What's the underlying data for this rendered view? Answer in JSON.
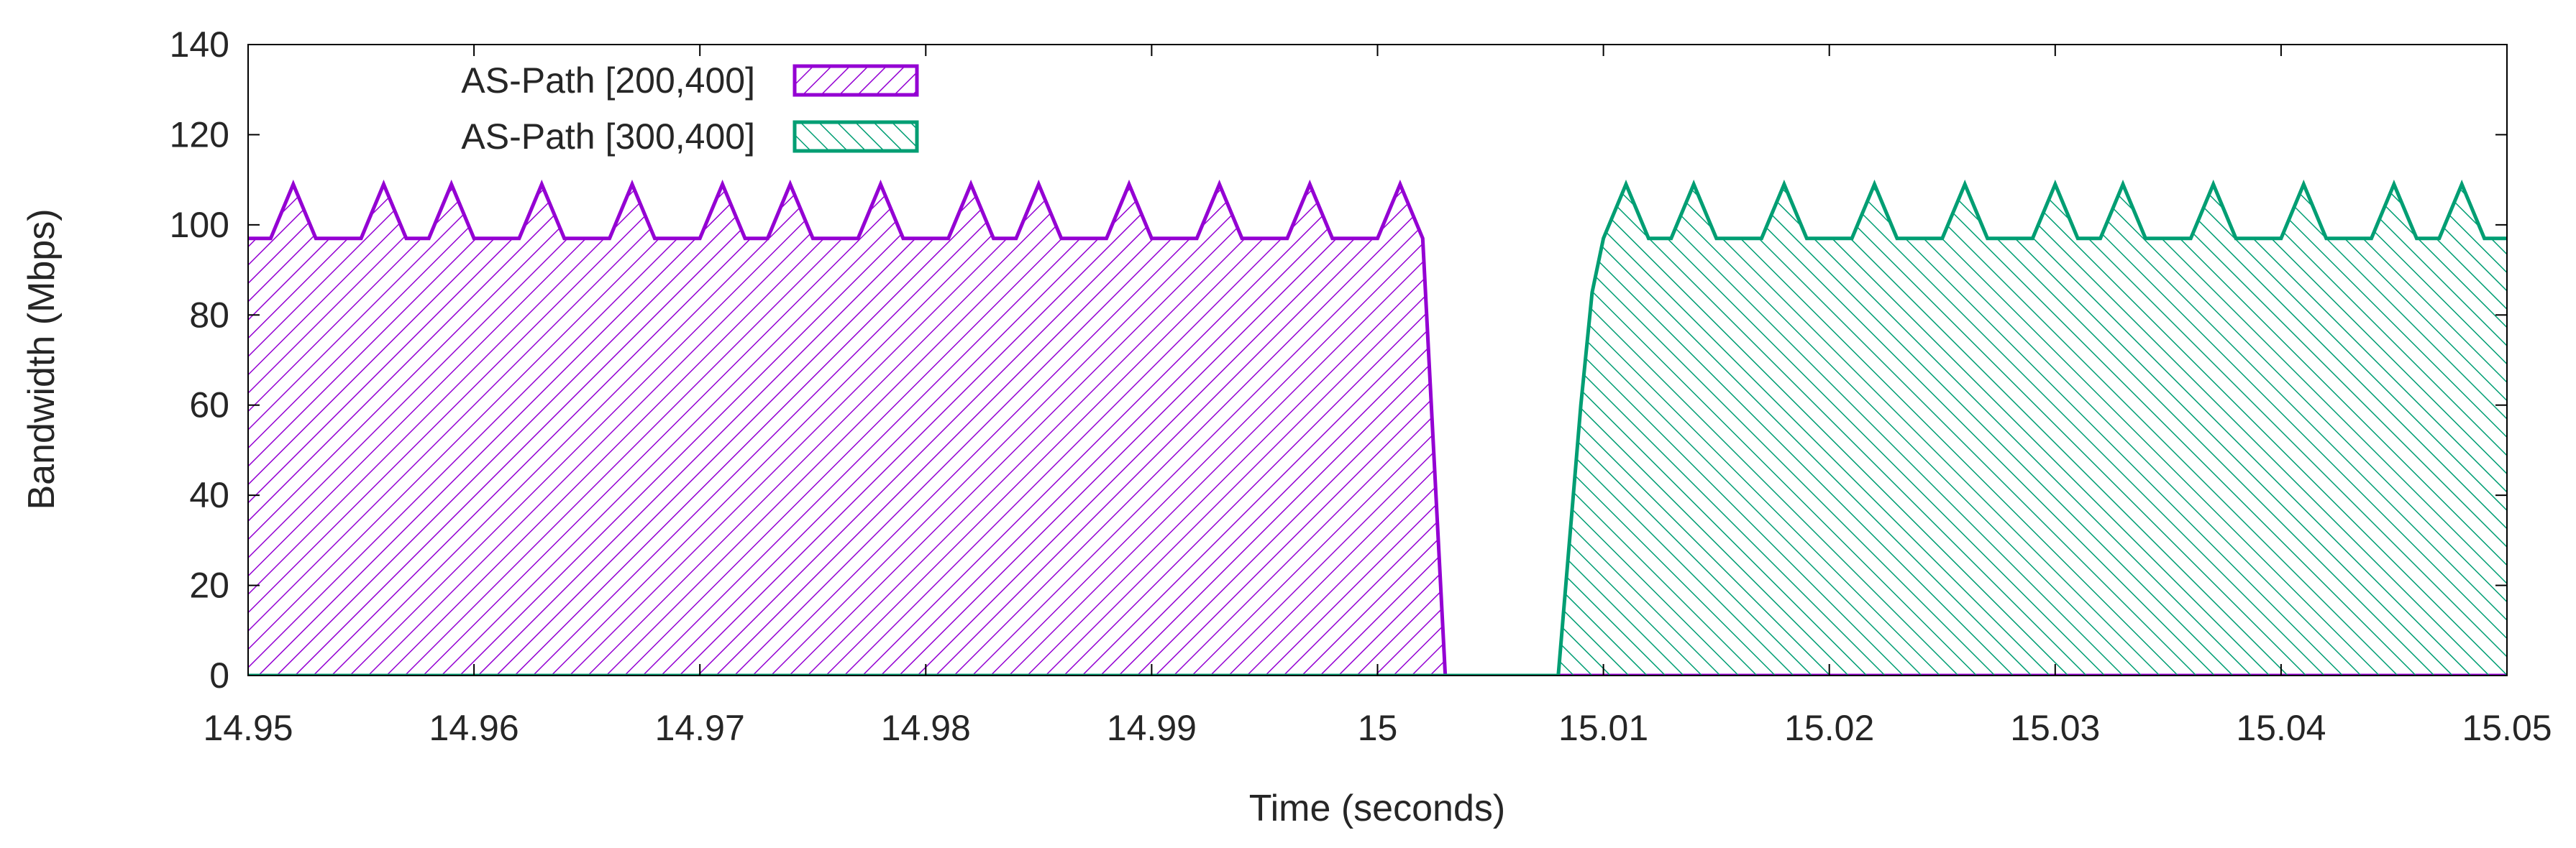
{
  "chart_data": {
    "type": "area",
    "xlabel": "Time (seconds)",
    "ylabel": "Bandwidth (Mbps)",
    "xlim": [
      14.95,
      15.05
    ],
    "ylim": [
      0,
      140
    ],
    "x_ticks": [
      "14.95",
      "14.96",
      "14.97",
      "14.98",
      "14.99",
      "15",
      "15.01",
      "15.02",
      "15.03",
      "15.04",
      "15.05"
    ],
    "y_ticks": [
      "0",
      "20",
      "40",
      "60",
      "80",
      "100",
      "120",
      "140"
    ],
    "grid": false,
    "legend_position": "top-left",
    "series": [
      {
        "name": "AS-Path [200,400]",
        "color": "#9400d3",
        "fill_pattern": "diagonal-down",
        "points": [
          [
            14.95,
            97
          ],
          [
            14.951,
            97
          ],
          [
            14.952,
            109
          ],
          [
            14.953,
            97
          ],
          [
            14.955,
            97
          ],
          [
            14.956,
            109
          ],
          [
            14.957,
            97
          ],
          [
            14.958,
            97
          ],
          [
            14.959,
            109
          ],
          [
            14.96,
            97
          ],
          [
            14.962,
            97
          ],
          [
            14.963,
            109
          ],
          [
            14.964,
            97
          ],
          [
            14.966,
            97
          ],
          [
            14.967,
            109
          ],
          [
            14.968,
            97
          ],
          [
            14.97,
            97
          ],
          [
            14.971,
            109
          ],
          [
            14.972,
            97
          ],
          [
            14.973,
            97
          ],
          [
            14.974,
            109
          ],
          [
            14.975,
            97
          ],
          [
            14.977,
            97
          ],
          [
            14.978,
            109
          ],
          [
            14.979,
            97
          ],
          [
            14.981,
            97
          ],
          [
            14.982,
            109
          ],
          [
            14.983,
            97
          ],
          [
            14.984,
            97
          ],
          [
            14.985,
            109
          ],
          [
            14.986,
            97
          ],
          [
            14.988,
            97
          ],
          [
            14.989,
            109
          ],
          [
            14.99,
            97
          ],
          [
            14.992,
            97
          ],
          [
            14.993,
            109
          ],
          [
            14.994,
            97
          ],
          [
            14.996,
            97
          ],
          [
            14.997,
            109
          ],
          [
            14.998,
            97
          ],
          [
            15.0,
            97
          ],
          [
            15.001,
            109
          ],
          [
            15.002,
            97
          ],
          [
            15.003,
            0
          ],
          [
            15.05,
            0
          ]
        ]
      },
      {
        "name": "AS-Path [300,400]",
        "color": "#009e73",
        "fill_pattern": "diagonal-up",
        "points": [
          [
            14.95,
            0
          ],
          [
            15.008,
            0
          ],
          [
            15.009,
            60
          ],
          [
            15.0095,
            85
          ],
          [
            15.01,
            97
          ],
          [
            15.011,
            109
          ],
          [
            15.012,
            97
          ],
          [
            15.013,
            97
          ],
          [
            15.014,
            109
          ],
          [
            15.015,
            97
          ],
          [
            15.017,
            97
          ],
          [
            15.018,
            109
          ],
          [
            15.019,
            97
          ],
          [
            15.021,
            97
          ],
          [
            15.022,
            109
          ],
          [
            15.023,
            97
          ],
          [
            15.025,
            97
          ],
          [
            15.026,
            109
          ],
          [
            15.027,
            97
          ],
          [
            15.029,
            97
          ],
          [
            15.03,
            109
          ],
          [
            15.031,
            97
          ],
          [
            15.032,
            97
          ],
          [
            15.033,
            109
          ],
          [
            15.034,
            97
          ],
          [
            15.036,
            97
          ],
          [
            15.037,
            109
          ],
          [
            15.038,
            97
          ],
          [
            15.04,
            97
          ],
          [
            15.041,
            109
          ],
          [
            15.042,
            97
          ],
          [
            15.044,
            97
          ],
          [
            15.045,
            109
          ],
          [
            15.046,
            97
          ],
          [
            15.047,
            97
          ],
          [
            15.048,
            109
          ],
          [
            15.049,
            97
          ],
          [
            15.05,
            97
          ]
        ]
      }
    ]
  }
}
